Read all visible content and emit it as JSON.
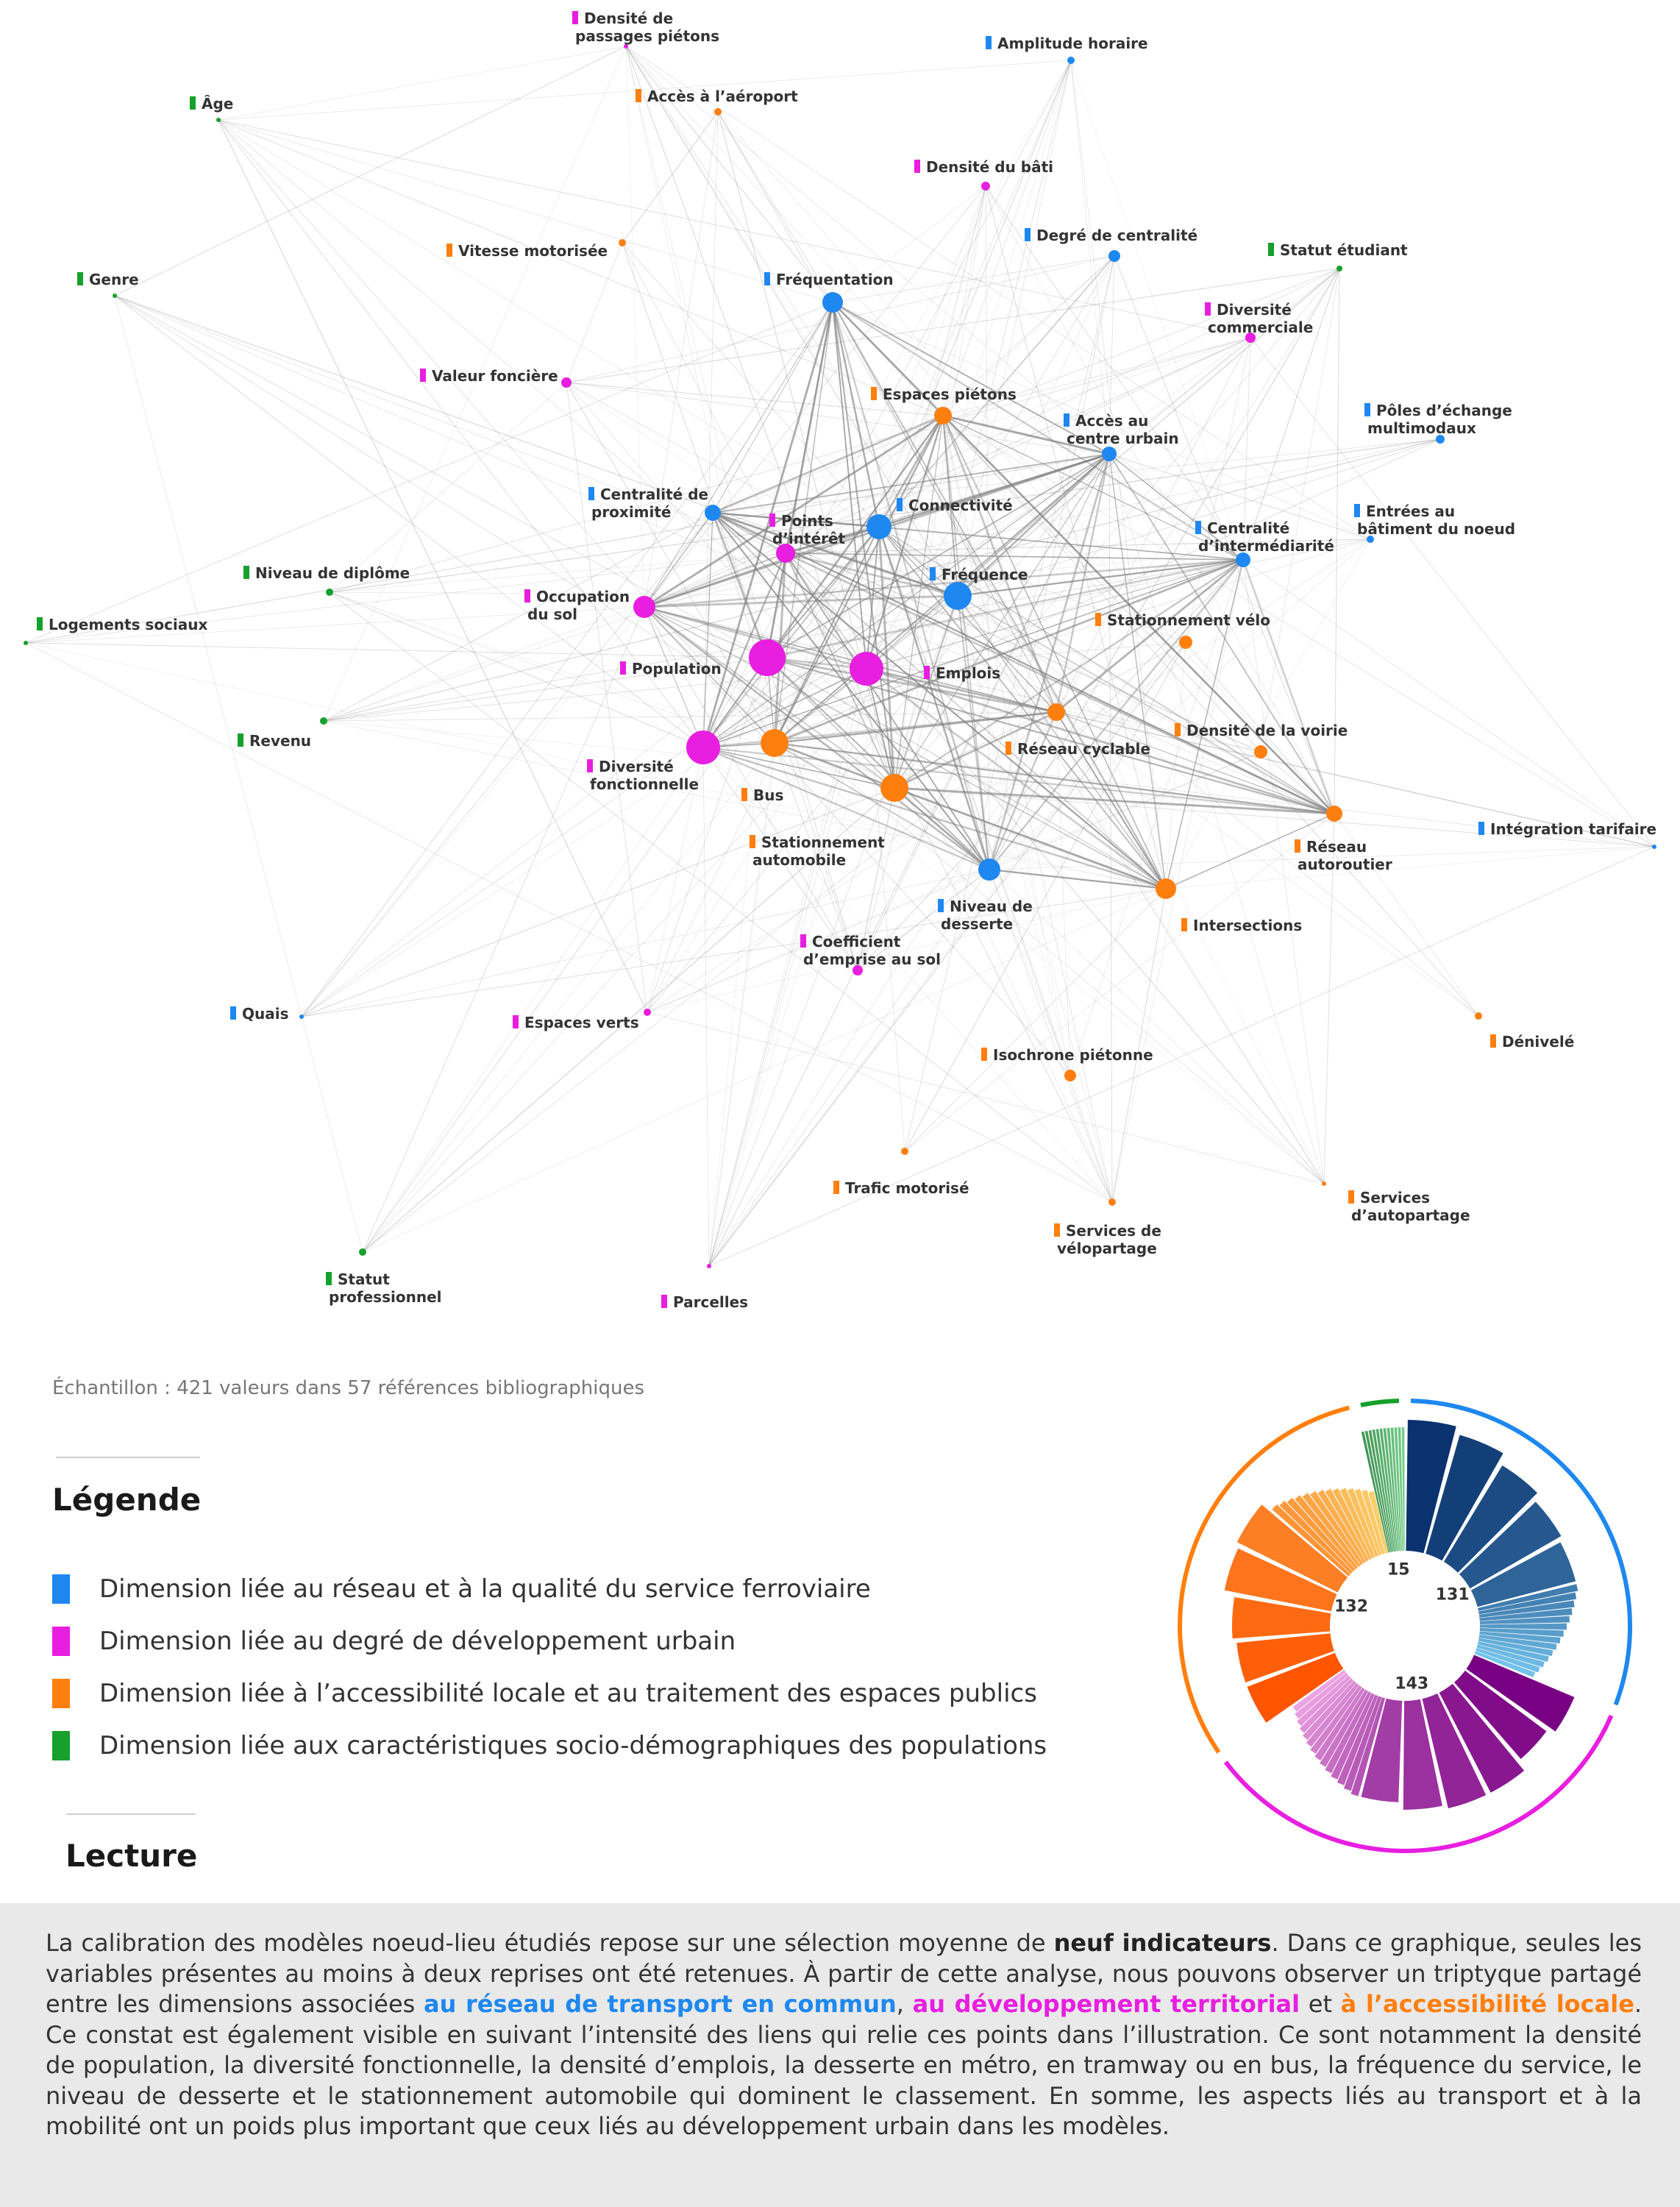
{
  "colors": {
    "reseau": "#1e88f0",
    "urbain": "#e81ee0",
    "access": "#ff7f0e",
    "socio": "#16a02c"
  },
  "nodes": [
    {
      "id": "densite_pass_pieton",
      "label": [
        "Densité de",
        "passages piétons"
      ],
      "dim": "urbain",
      "r": 3
    },
    {
      "id": "amplitude",
      "label": [
        "Amplitude horaire"
      ],
      "dim": "reseau",
      "r": 5
    },
    {
      "id": "aeroport",
      "label": [
        "Accès à l’aéroport"
      ],
      "dim": "access",
      "r": 5
    },
    {
      "id": "age",
      "label": [
        "Âge"
      ],
      "dim": "socio",
      "r": 3
    },
    {
      "id": "densite_bati",
      "label": [
        "Densité du bâti"
      ],
      "dim": "urbain",
      "r": 6
    },
    {
      "id": "vitesse",
      "label": [
        "Vitesse motorisée"
      ],
      "dim": "access",
      "r": 5
    },
    {
      "id": "centralite",
      "label": [
        "Degré de centralité"
      ],
      "dim": "reseau",
      "r": 8
    },
    {
      "id": "etudiant",
      "label": [
        "Statut étudiant"
      ],
      "dim": "socio",
      "r": 4
    },
    {
      "id": "genre",
      "label": [
        "Genre"
      ],
      "dim": "socio",
      "r": 3
    },
    {
      "id": "frequentation",
      "label": [
        "Fréquentation"
      ],
      "dim": "reseau",
      "r": 14
    },
    {
      "id": "diversite_comm",
      "label": [
        "Diversité",
        "commerciale"
      ],
      "dim": "urbain",
      "r": 7
    },
    {
      "id": "valeur_fonciere",
      "label": [
        "Valeur foncière"
      ],
      "dim": "urbain",
      "r": 7
    },
    {
      "id": "espaces_pietons",
      "label": [
        "Espaces piétons"
      ],
      "dim": "access",
      "r": 12
    },
    {
      "id": "acces_centre",
      "label": [
        "Accès au",
        "centre urbain"
      ],
      "dim": "reseau",
      "r": 10
    },
    {
      "id": "poles",
      "label": [
        "Pôles d’échange",
        "multimodaux"
      ],
      "dim": "reseau",
      "r": 6
    },
    {
      "id": "centralite_prox",
      "label": [
        "Centralité de",
        "proximité"
      ],
      "dim": "reseau",
      "r": 11
    },
    {
      "id": "points_interet",
      "label": [
        "Points",
        "d’intérêt"
      ],
      "dim": "urbain",
      "r": 13
    },
    {
      "id": "connectivite",
      "label": [
        "Connectivité"
      ],
      "dim": "reseau",
      "r": 17
    },
    {
      "id": "centralite_inter",
      "label": [
        "Centralité",
        "d’intermédiarité"
      ],
      "dim": "reseau",
      "r": 10
    },
    {
      "id": "entrees",
      "label": [
        "Entrées au",
        "bâtiment du noeud"
      ],
      "dim": "reseau",
      "r": 5
    },
    {
      "id": "diplome",
      "label": [
        "Niveau de diplôme"
      ],
      "dim": "socio",
      "r": 5
    },
    {
      "id": "frequence",
      "label": [
        "Fréquence"
      ],
      "dim": "reseau",
      "r": 19
    },
    {
      "id": "occupation",
      "label": [
        "Occupation",
        "du sol"
      ],
      "dim": "urbain",
      "r": 15
    },
    {
      "id": "logements",
      "label": [
        "Logements sociaux"
      ],
      "dim": "socio",
      "r": 3
    },
    {
      "id": "stat_velo",
      "label": [
        "Stationnement vélo"
      ],
      "dim": "access",
      "r": 9
    },
    {
      "id": "population",
      "label": [
        "Population"
      ],
      "dim": "urbain",
      "r": 25
    },
    {
      "id": "emplois",
      "label": [
        "Emplois"
      ],
      "dim": "urbain",
      "r": 23
    },
    {
      "id": "revenu",
      "label": [
        "Revenu"
      ],
      "dim": "socio",
      "r": 5
    },
    {
      "id": "reseau_cyclable",
      "label": [
        "Réseau cyclable"
      ],
      "dim": "access",
      "r": 12
    },
    {
      "id": "densite_voirie",
      "label": [
        "Densité de la voirie"
      ],
      "dim": "access",
      "r": 9
    },
    {
      "id": "diversite_fonc",
      "label": [
        "Diversité",
        "fonctionnelle"
      ],
      "dim": "urbain",
      "r": 23
    },
    {
      "id": "bus",
      "label": [
        "Bus"
      ],
      "dim": "access",
      "r": 19
    },
    {
      "id": "stat_auto",
      "label": [
        "Stationnement",
        "automobile"
      ],
      "dim": "access",
      "r": 19
    },
    {
      "id": "autoroutier",
      "label": [
        "Réseau",
        "autoroutier"
      ],
      "dim": "access",
      "r": 11
    },
    {
      "id": "integration",
      "label": [
        "Intégration tarifaire"
      ],
      "dim": "reseau",
      "r": 3
    },
    {
      "id": "desserte",
      "label": [
        "Niveau de",
        "desserte"
      ],
      "dim": "reseau",
      "r": 15
    },
    {
      "id": "intersections",
      "label": [
        "Intersections"
      ],
      "dim": "access",
      "r": 14
    },
    {
      "id": "ces",
      "label": [
        "Coefficient",
        "d’emprise au sol"
      ],
      "dim": "urbain",
      "r": 7
    },
    {
      "id": "quais",
      "label": [
        "Quais"
      ],
      "dim": "reseau",
      "r": 3
    },
    {
      "id": "espaces_verts",
      "label": [
        "Espaces verts"
      ],
      "dim": "urbain",
      "r": 5
    },
    {
      "id": "denivele",
      "label": [
        "Dénivelé"
      ],
      "dim": "access",
      "r": 5
    },
    {
      "id": "isochrone",
      "label": [
        "Isochrone piétonne"
      ],
      "dim": "access",
      "r": 8
    },
    {
      "id": "trafic",
      "label": [
        "Trafic motorisé"
      ],
      "dim": "access",
      "r": 5
    },
    {
      "id": "autopartage",
      "label": [
        "Services",
        "d’autopartage"
      ],
      "dim": "access",
      "r": 3
    },
    {
      "id": "velopartage",
      "label": [
        "Services de",
        "vélopartage"
      ],
      "dim": "access",
      "r": 5
    },
    {
      "id": "statut_pro",
      "label": [
        "Statut",
        "professionnel"
      ],
      "dim": "socio",
      "r": 5
    },
    {
      "id": "parcelles",
      "label": [
        "Parcelles"
      ],
      "dim": "urbain",
      "r": 3
    }
  ],
  "sample_text": "Échantillon : 421 valeurs dans 57 références bibliographiques",
  "legend": {
    "title": "Légende",
    "items": [
      {
        "dim": "reseau",
        "text": "Dimension liée au réseau et à la qualité du service ferroviaire"
      },
      {
        "dim": "urbain",
        "text": "Dimension liée au degré de développement urbain"
      },
      {
        "dim": "access",
        "text": "Dimension liée à l’accessibilité locale et au traitement des espaces publics"
      },
      {
        "dim": "socio",
        "text": "Dimension liée aux caractéristiques socio-démographiques des populations"
      }
    ]
  },
  "donut": {
    "totals": [
      {
        "dim": "reseau",
        "value": 131
      },
      {
        "dim": "urbain",
        "value": 143
      },
      {
        "dim": "access",
        "value": 132
      },
      {
        "dim": "socio",
        "value": 15
      }
    ]
  },
  "lecture": {
    "title": "Lecture",
    "t1": "La calibration des modèles noeud-lieu étudiés repose sur une sélection moyenne de ",
    "b1": "neuf indicateurs",
    "t2": ". Dans ce graphique, seules les variables présentes au moins à deux reprises ont été retenues. À partir de cette analyse, nous pouvons observer un triptyque partagé entre les dimensions associées ",
    "h1": "au réseau de transport en commun",
    "t3": ", ",
    "h2": "au développement territorial",
    "t4": " et ",
    "h3": "à l’accessibilité locale",
    "t5": ". Ce constat est également visible en suivant l’intensité des liens qui relie ces points dans l’illustration. Ce sont notamment la densité de population, la diversité fonctionnelle, la densité d’emplois, la desserte en métro, en tramway ou en bus, la fréquence du service, le niveau de desserte et le stationnement automobile qui dominent le classement. En somme, les aspects liés au transport et à la mobilité ont un poids plus important que ceux liés au développement urbain dans les modèles."
  }
}
